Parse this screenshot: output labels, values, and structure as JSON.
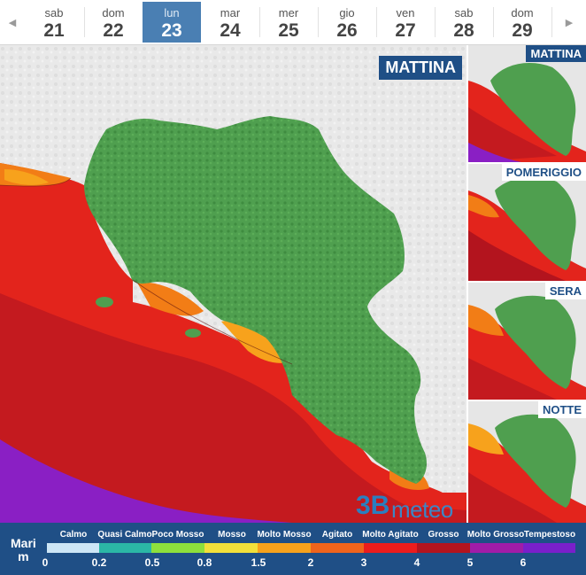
{
  "nav": {
    "prev_icon": "◀",
    "next_icon": "▶"
  },
  "days": [
    {
      "name": "sab",
      "date": "21"
    },
    {
      "name": "dom",
      "date": "22"
    },
    {
      "name": "lun",
      "date": "23"
    },
    {
      "name": "mar",
      "date": "24"
    },
    {
      "name": "mer",
      "date": "25"
    },
    {
      "name": "gio",
      "date": "26"
    },
    {
      "name": "ven",
      "date": "27"
    },
    {
      "name": "sab",
      "date": "28"
    },
    {
      "name": "dom",
      "date": "29"
    }
  ],
  "active_day": "lun 23",
  "map": {
    "period_label": "MATTINA",
    "logo_number": "3B",
    "logo_text": "meteo"
  },
  "thumbnails": [
    {
      "label": "MATTINA",
      "selected": true
    },
    {
      "label": "POMERIGGIO",
      "selected": false
    },
    {
      "label": "SERA",
      "selected": false
    },
    {
      "label": "NOTTE",
      "selected": false
    }
  ],
  "legend": {
    "title_line1": "Mari",
    "title_line2": "m",
    "categories": [
      {
        "label": "Calmo",
        "color": "#cde6f6"
      },
      {
        "label": "Quasi Calmo",
        "color": "#2bb7a6"
      },
      {
        "label": "Poco Mosso",
        "color": "#8ee03c"
      },
      {
        "label": "Mosso",
        "color": "#f2e03a"
      },
      {
        "label": "Molto Mosso",
        "color": "#f7a21c"
      },
      {
        "label": "Agitato",
        "color": "#f0641c"
      },
      {
        "label": "Molto Agitato",
        "color": "#ec1c1c"
      },
      {
        "label": "Grosso",
        "color": "#b3141e"
      },
      {
        "label": "Molto Grosso",
        "color": "#a11ca8"
      },
      {
        "label": "Tempestoso",
        "color": "#7a1fcb"
      }
    ],
    "ticks": [
      "0",
      "0.2",
      "0.5",
      "0.8",
      "1.5",
      "2",
      "3",
      "4",
      "5",
      "6"
    ]
  },
  "colors": {
    "brand": "#1f4f86",
    "active_day": "#4a7fb3",
    "land": "#4f9d4f",
    "sea_red": "#e3241c",
    "sea_dark": "#c41a1f",
    "sea_purple": "#8a1fc4"
  }
}
